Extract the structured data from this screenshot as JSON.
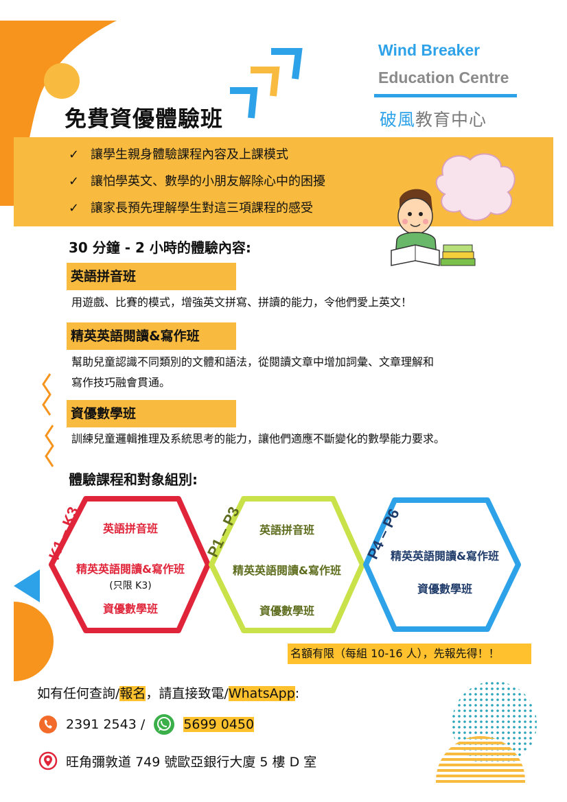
{
  "brand": {
    "name_en_line1": "Wind Breaker",
    "name_en_line2": "Education Centre",
    "name_zh_highlight": "破風",
    "name_zh_rest": "教育中心"
  },
  "title": "免費資優體驗班",
  "benefits": [
    "讓學生親身體驗課程內容及上課模式",
    "讓怕學英文、數學的小朋友解除心中的困擾",
    "讓家長預先理解學生對這三項課程的感受"
  ],
  "check_mark": "✓",
  "duration_heading": "30 分鐘 - 2 小時的體驗內容:",
  "courses": [
    {
      "name": "英語拼音班",
      "description_lines": [
        "用遊戲、比賽的模式，增強英文拼寫、拼讀的能力，令他們愛上英文！"
      ]
    },
    {
      "name": "精英英語閱讀&寫作班",
      "description_lines": [
        "幫助兒童認識不同類別的文體和語法，從閱讀文章中增加詞彙、文章理解和",
        "寫作技巧融會貫通。"
      ]
    },
    {
      "name": "資優數學班",
      "description_lines": [
        "訓練兒童邏輯推理及系統思考的能力，讓他們適應不斷變化的數學能力要求。"
      ]
    }
  ],
  "groups_heading": "體驗課程和對象組別:",
  "groups": [
    {
      "label": "K1 – K3",
      "courses": [
        "英語拼音班",
        "精英英語閱讀&寫作班",
        "(只限 K3)",
        "資優數學班"
      ]
    },
    {
      "label": "P1 – P3",
      "courses": [
        "英語拼音班",
        "精英英語閱讀&寫作班",
        "資優數學班"
      ]
    },
    {
      "label": "P4 – P6",
      "courses": [
        "精英英語閱讀&寫作班",
        "資優數學班"
      ]
    }
  ],
  "notice": "名額有限（每組 10-16 人），先報先得！！",
  "contact": {
    "prompt_1": "如有任何查詢/",
    "prompt_2": "報名",
    "prompt_3": "，請直接致電/",
    "prompt_4": "WhatsApp",
    "prompt_5": ":",
    "phone": "2391 2543 /",
    "whatsapp": "5699 0450",
    "address": "旺角彌敦道 749 號歐亞銀行大廈 5 樓 D 室"
  },
  "colors": {
    "orange": "#f7941d",
    "yellow": "#f9bb3f",
    "blue": "#2ea2e8",
    "red": "#e0253a",
    "lime": "#c9e24a",
    "navy": "#1f3b6a"
  },
  "icons": {
    "phone": "phone-icon",
    "whatsapp": "whatsapp-icon",
    "location": "location-pin-icon",
    "check": "check-icon"
  }
}
